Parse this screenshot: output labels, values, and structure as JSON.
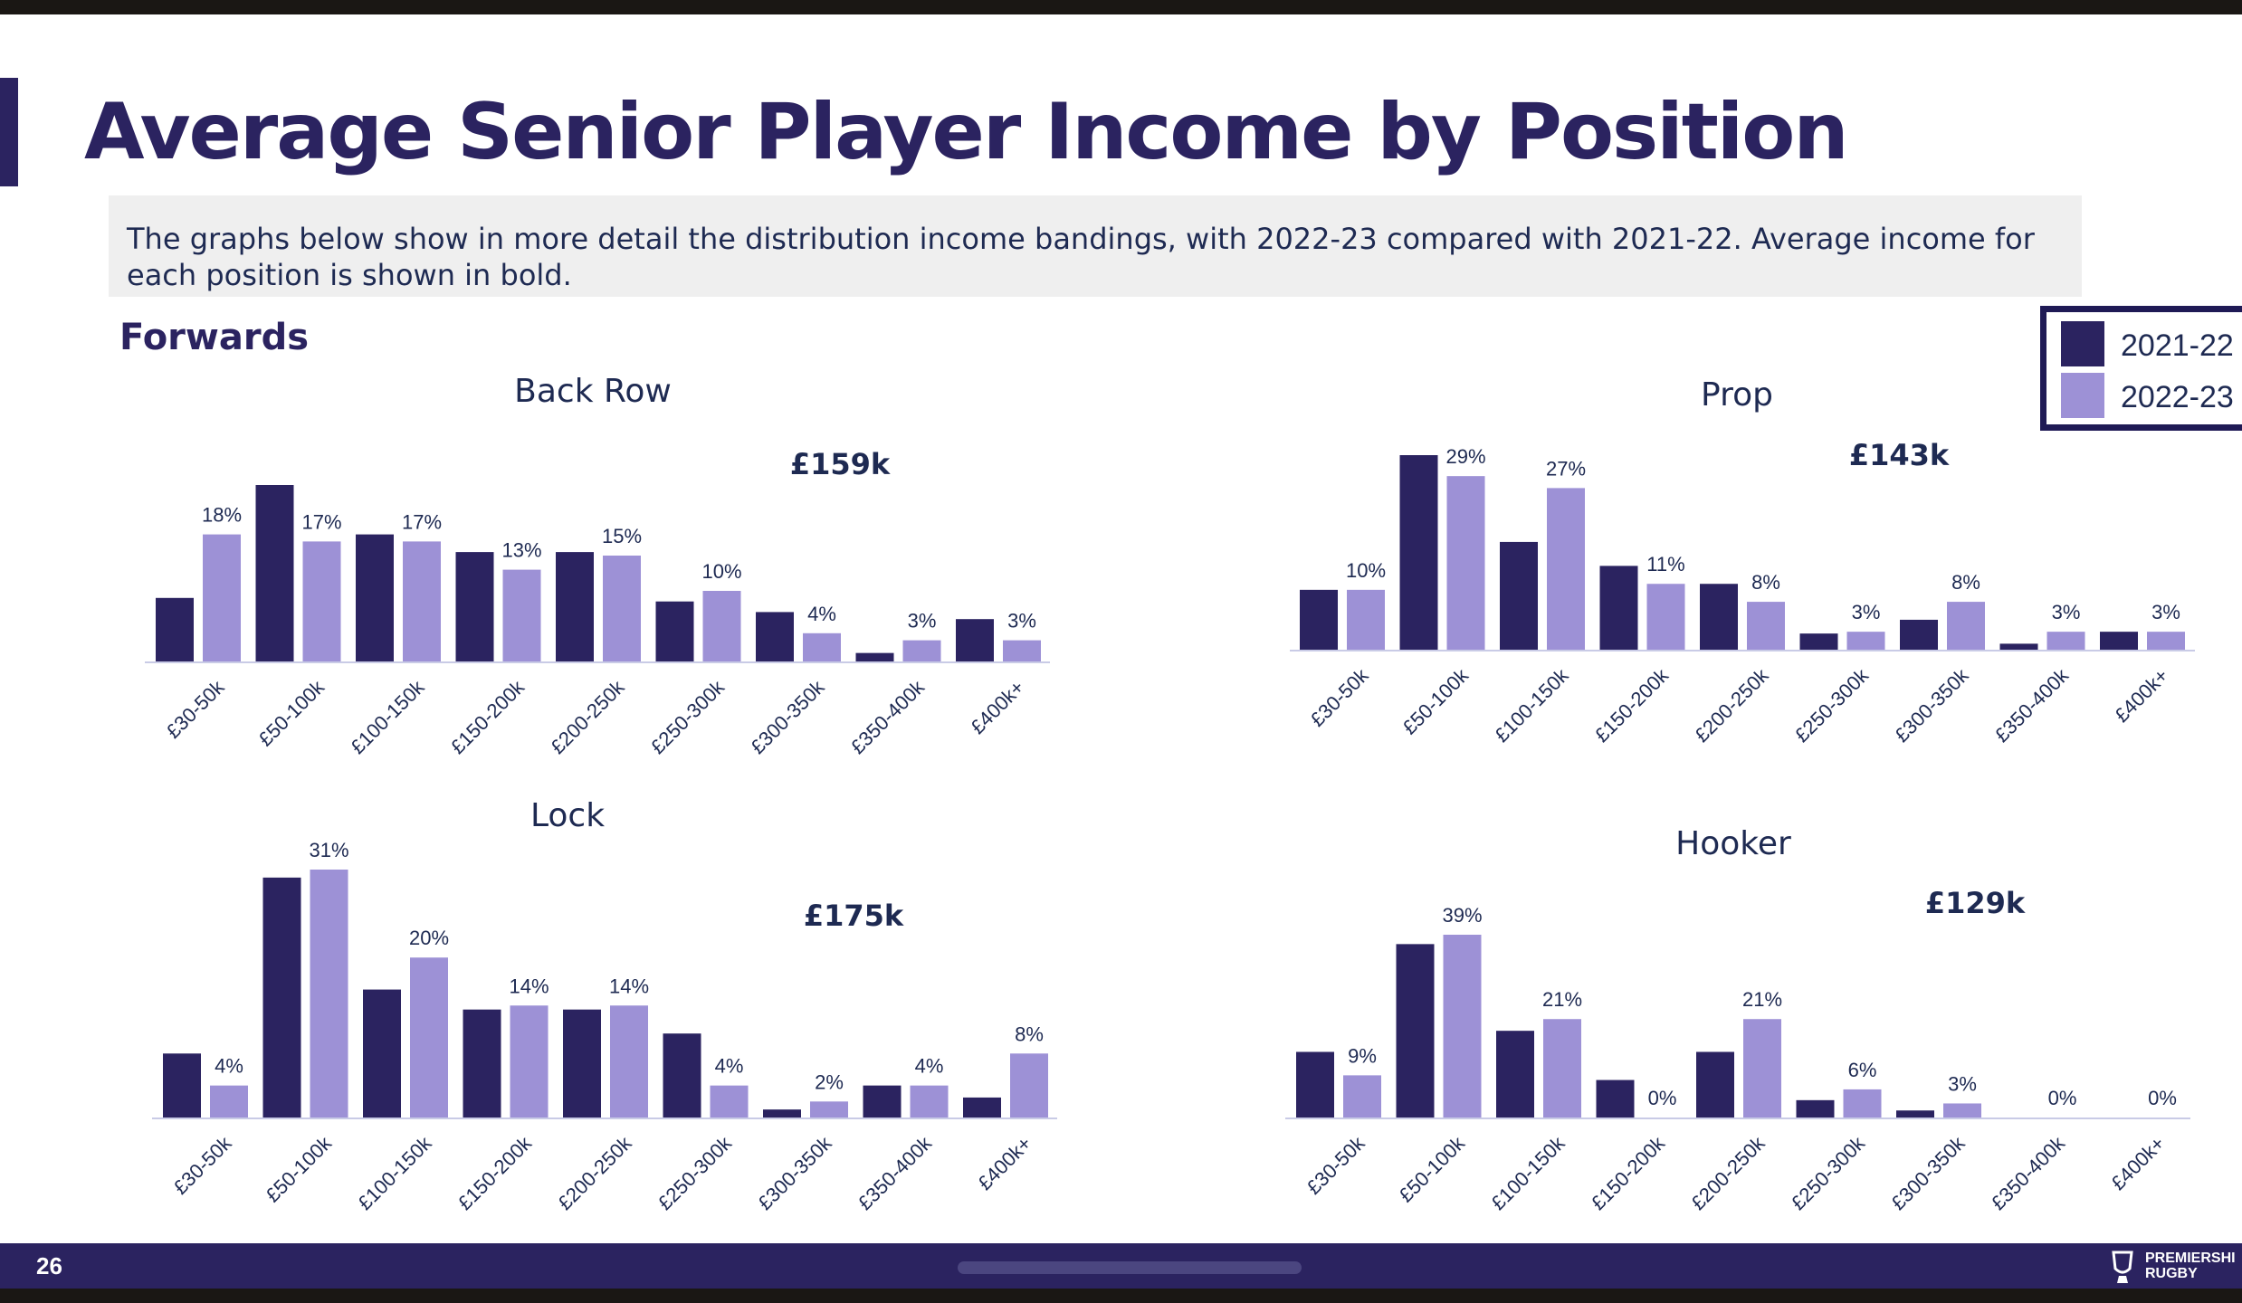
{
  "page": {
    "title": "Average Senior Player Income by Position",
    "intro": "The graphs below show in more detail the distribution income bandings, with 2022-23 compared with 2021-22. Average income for each position is shown in bold.",
    "section": "Forwards",
    "page_number": "26",
    "brand_line1": "PREMIERSHI",
    "brand_line2": "RUGBY"
  },
  "legend": {
    "items": [
      {
        "label": "2021-22",
        "color": "#2b2360"
      },
      {
        "label": "2022-23",
        "color": "#9d91d6"
      }
    ]
  },
  "colors": {
    "series_2021_22": "#2b2360",
    "series_2022_23": "#9d91d6",
    "title": "#2b2360",
    "text": "#1e2a52"
  },
  "chart_data": [
    {
      "type": "bar",
      "title": "Back Row",
      "average": "£159k",
      "categories": [
        "£30-50k",
        "£50-100k",
        "£100-150k",
        "£150-200k",
        "£200-250k",
        "£250-300k",
        "£300-350k",
        "£350-400k",
        "£400k+"
      ],
      "series": [
        {
          "name": "2021-22",
          "values": [
            9,
            25,
            18,
            15.5,
            15.5,
            8.5,
            7,
            1.2,
            6
          ]
        },
        {
          "name": "2022-23",
          "values": [
            18,
            17,
            17,
            13,
            15,
            10,
            4,
            3,
            3
          ]
        }
      ],
      "data_labels": [
        "18%",
        "17%",
        "17%",
        "13%",
        "15%",
        "10%",
        "4%",
        "3%",
        "3%"
      ],
      "ylim": [
        0,
        25
      ],
      "grid": false
    },
    {
      "type": "bar",
      "title": "Prop",
      "average": "£143k",
      "categories": [
        "£30-50k",
        "£50-100k",
        "£100-150k",
        "£150-200k",
        "£200-250k",
        "£250-300k",
        "£300-350k",
        "£350-400k",
        "£400k+"
      ],
      "series": [
        {
          "name": "2021-22",
          "values": [
            10,
            32.5,
            18,
            14,
            11,
            2.7,
            5,
            1,
            3
          ]
        },
        {
          "name": "2022-23",
          "values": [
            10,
            29,
            27,
            11,
            8,
            3,
            8,
            3,
            3
          ]
        }
      ],
      "data_labels": [
        "10%",
        "29%",
        "27%",
        "11%",
        "8%",
        "3%",
        "8%",
        "3%",
        "3%"
      ],
      "ylim": [
        0,
        32.5
      ],
      "grid": false
    },
    {
      "type": "bar",
      "title": "Lock",
      "average": "£175k",
      "categories": [
        "£30-50k",
        "£50-100k",
        "£100-150k",
        "£150-200k",
        "£200-250k",
        "£250-300k",
        "£300-350k",
        "£350-400k",
        "£400k+"
      ],
      "series": [
        {
          "name": "2021-22",
          "values": [
            8,
            30,
            16,
            13.5,
            13.5,
            10.5,
            1,
            4,
            2.5
          ]
        },
        {
          "name": "2022-23",
          "values": [
            4,
            31,
            20,
            14,
            14,
            4,
            2,
            4,
            8
          ]
        }
      ],
      "data_labels": [
        "4%",
        "31%",
        "20%",
        "14%",
        "14%",
        "4%",
        "2%",
        "4%",
        "8%"
      ],
      "ylim": [
        0,
        31
      ],
      "grid": false
    },
    {
      "type": "bar",
      "title": "Hooker",
      "average": "£129k",
      "categories": [
        "£30-50k",
        "£50-100k",
        "£100-150k",
        "£150-200k",
        "£200-250k",
        "£250-300k",
        "£300-350k",
        "£350-400k",
        "£400k+"
      ],
      "series": [
        {
          "name": "2021-22",
          "values": [
            14,
            37,
            18.5,
            8,
            14,
            3.7,
            1.5,
            0,
            0
          ]
        },
        {
          "name": "2022-23",
          "values": [
            9,
            39,
            21,
            0,
            21,
            6,
            3,
            0,
            0
          ]
        }
      ],
      "data_labels": [
        "9%",
        "39%",
        "21%",
        "0%",
        "21%",
        "6%",
        "3%",
        "0%",
        "0%"
      ],
      "ylim": [
        0,
        39
      ],
      "grid": false
    }
  ]
}
